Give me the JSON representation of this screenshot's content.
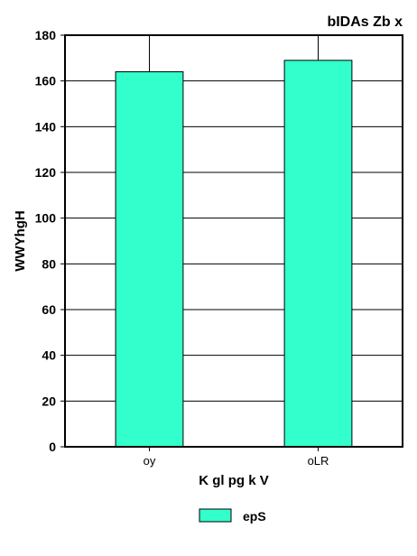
{
  "chart_data": {
    "type": "bar",
    "title": "bIDAs Zb x",
    "xlabel": "K gl pg k  V",
    "ylabel": "WWYhgH",
    "categories": [
      "oy",
      "oLR"
    ],
    "series": [
      {
        "name": "epS",
        "values": [
          164,
          169
        ],
        "color": "#33ffcc"
      }
    ],
    "ylim": [
      0,
      180
    ],
    "yticks": [
      0,
      20,
      40,
      60,
      80,
      100,
      120,
      140,
      160,
      180
    ],
    "grid": true,
    "legend": "bottom"
  }
}
